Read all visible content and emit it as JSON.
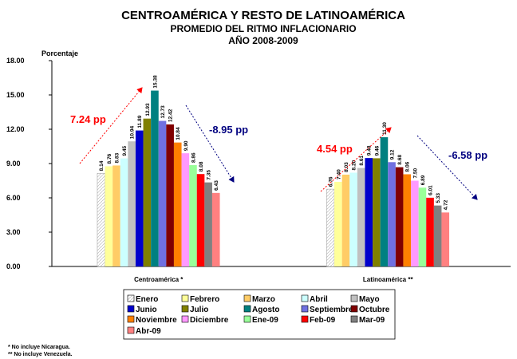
{
  "chart_data": {
    "type": "bar",
    "title": "CENTROAMÉRICA Y RESTO DE LATINOAMÉRICA",
    "subtitle": [
      "PROMEDIO DEL RITMO INFLACIONARIO",
      "AÑO 2008-2009"
    ],
    "y_label": "Porcentaje",
    "categories": [
      "Centroamérica *",
      "Latinoamérica **"
    ],
    "ylim": [
      0,
      18
    ],
    "yticks": [
      {
        "value": 0,
        "label": "0.00"
      },
      {
        "value": 3,
        "label": "3.00"
      },
      {
        "value": 6,
        "label": "6.00"
      },
      {
        "value": 9,
        "label": "9.00"
      },
      {
        "value": 12,
        "label": "12.00"
      },
      {
        "value": 15,
        "label": "15.00"
      },
      {
        "value": 18,
        "label": "18.00"
      }
    ],
    "series": [
      {
        "name": "Enero",
        "color": "#ffffff",
        "values": [
          8.14,
          6.76
        ]
      },
      {
        "name": "Febrero",
        "color": "#ffff99",
        "values": [
          8.76,
          7.4
        ],
        "value_labels": [
          "8.76",
          "7.40"
        ]
      },
      {
        "name": "Marzo",
        "color": "#ffcc66",
        "values": [
          8.83,
          8.03
        ]
      },
      {
        "name": "Abril",
        "color": "#ccffff",
        "values": [
          9.45,
          8.2
        ],
        "value_labels": [
          "9.45",
          "8.20"
        ]
      },
      {
        "name": "Mayo",
        "color": "#c0c0c0",
        "values": [
          10.94,
          8.61
        ]
      },
      {
        "name": "Junio",
        "color": "#0000cc",
        "values": [
          11.89,
          9.48
        ]
      },
      {
        "name": "Julio",
        "color": "#808000",
        "values": [
          12.93,
          9.46
        ]
      },
      {
        "name": "Agosto",
        "color": "#008080",
        "values": [
          15.38,
          11.3
        ],
        "value_labels": [
          "15.38",
          "11.30"
        ]
      },
      {
        "name": "Septiembre",
        "color": "#7070e0",
        "values": [
          12.73,
          9.12
        ]
      },
      {
        "name": "Octubre",
        "color": "#800000",
        "values": [
          12.42,
          8.68
        ]
      },
      {
        "name": "Noviembre",
        "color": "#ff8000",
        "values": [
          10.84,
          8.06
        ]
      },
      {
        "name": "Diciembre",
        "color": "#ff99ff",
        "values": [
          9.9,
          7.5
        ],
        "value_labels": [
          "9.90",
          "7.50"
        ]
      },
      {
        "name": "Ene-09",
        "color": "#99ff99",
        "values": [
          8.86,
          6.89
        ]
      },
      {
        "name": "Feb-09",
        "color": "#ff0000",
        "values": [
          8.08,
          6.01
        ]
      },
      {
        "name": "Mar-09",
        "color": "#808080",
        "values": [
          7.35,
          5.33
        ]
      },
      {
        "name": "Abr-09",
        "color": "#ff8080",
        "values": [
          6.43,
          4.72
        ]
      }
    ],
    "annotations": [
      {
        "text": "7.24 pp",
        "color": "#ff0000"
      },
      {
        "text": "-8.95 pp",
        "color": "#000080"
      },
      {
        "text": "4.54 pp",
        "color": "#ff0000"
      },
      {
        "text": "-6.58 pp",
        "color": "#000080"
      }
    ],
    "footnotes": [
      "* No incluye Nicaragua.",
      "** No incluye Venezuela."
    ]
  }
}
